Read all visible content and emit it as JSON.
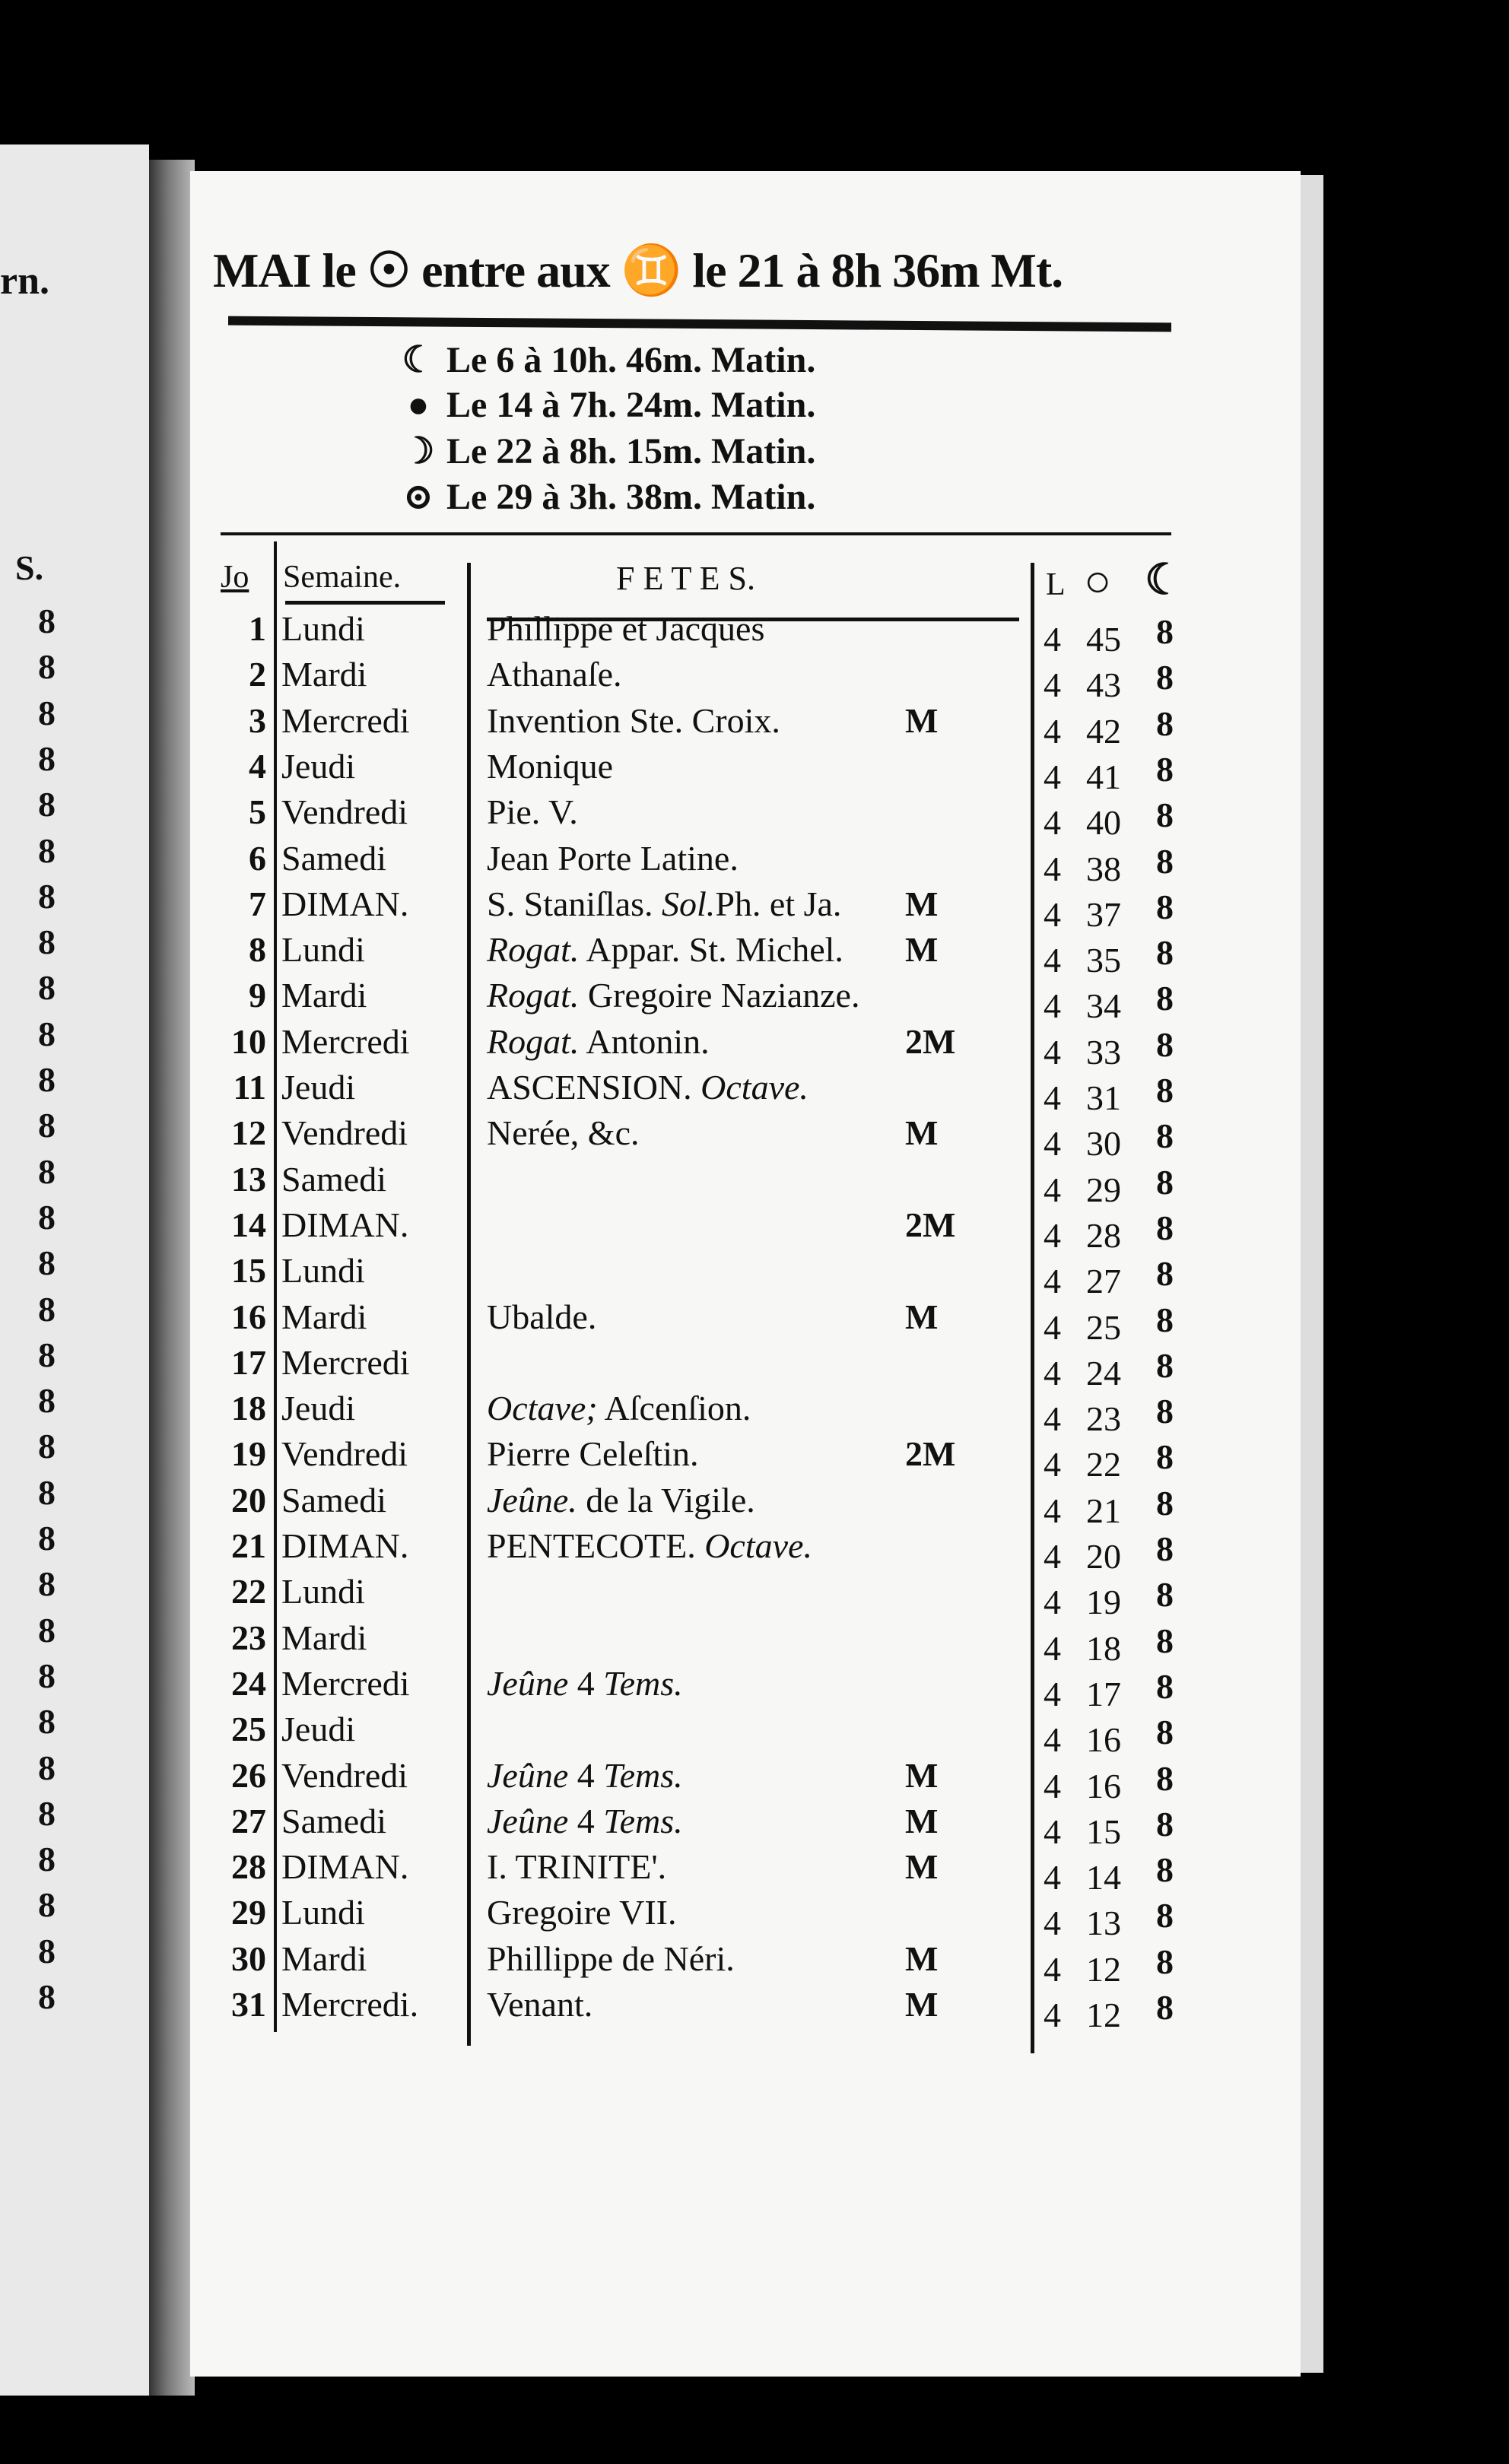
{
  "left_page": {
    "header_fragment": "rn.",
    "column_header": "S.",
    "column_value": "8"
  },
  "title": "MAI le ☉ entre aux ♊ le 21 à 8h 36m Mt.",
  "moon_phases": [
    {
      "icon": "last-quarter-moon-icon",
      "glyph": "☾",
      "text": "Le 6 à 10h. 46m. Matin."
    },
    {
      "icon": "new-moon-icon",
      "glyph": "●",
      "text": "Le 14 à 7h. 24m. Matin."
    },
    {
      "icon": "first-quarter-moon-icon",
      "glyph": "☽",
      "text": "Le 22 à 8h. 15m. Matin."
    },
    {
      "icon": "full-moon-icon",
      "glyph": "⊙",
      "text": "Le 29 à 3h. 38m. Matin."
    }
  ],
  "table": {
    "headers": {
      "day": "Jo",
      "week": "Semaine.",
      "fetes": "F E T E S.",
      "l": "L",
      "sun": "○",
      "moon": "☾"
    },
    "rows": [
      {
        "day": "1",
        "week": "Lundi",
        "fete": [
          {
            "t": "Phillippe et Jacques"
          }
        ],
        "mark": "",
        "h": "4",
        "m": "45",
        "c": "8"
      },
      {
        "day": "2",
        "week": "Mardi",
        "fete": [
          {
            "t": "Athanaſe."
          }
        ],
        "mark": "",
        "h": "4",
        "m": "43",
        "c": "8"
      },
      {
        "day": "3",
        "week": "Mercredi",
        "fete": [
          {
            "t": "Invention Ste. Croix."
          }
        ],
        "mark": "M",
        "h": "4",
        "m": "42",
        "c": "8"
      },
      {
        "day": "4",
        "week": "Jeudi",
        "fete": [
          {
            "t": "Monique"
          }
        ],
        "mark": "",
        "h": "4",
        "m": "41",
        "c": "8"
      },
      {
        "day": "5",
        "week": "Vendredi",
        "fete": [
          {
            "t": "Pie. V."
          }
        ],
        "mark": "",
        "h": "4",
        "m": "40",
        "c": "8"
      },
      {
        "day": "6",
        "week": "Samedi",
        "fete": [
          {
            "t": "Jean Porte Latine."
          }
        ],
        "mark": "",
        "h": "4",
        "m": "38",
        "c": "8"
      },
      {
        "day": "7",
        "week": "DIMAN.",
        "fete": [
          {
            "t": "S. Staniſlas. "
          },
          {
            "t": "Sol.",
            "i": true
          },
          {
            "t": "Ph. et Ja."
          }
        ],
        "mark": "M",
        "h": "4",
        "m": "37",
        "c": "8"
      },
      {
        "day": "8",
        "week": "Lundi",
        "fete": [
          {
            "t": "Rogat.",
            "i": true
          },
          {
            "t": " Appar. St. Michel."
          }
        ],
        "mark": "M",
        "h": "4",
        "m": "35",
        "c": "8"
      },
      {
        "day": "9",
        "week": "Mardi",
        "fete": [
          {
            "t": "Rogat.",
            "i": true
          },
          {
            "t": " Gregoire Nazianze."
          }
        ],
        "mark": "",
        "h": "4",
        "m": "34",
        "c": "8"
      },
      {
        "day": "10",
        "week": "Mercredi",
        "fete": [
          {
            "t": "Rogat.",
            "i": true
          },
          {
            "t": " Antonin."
          }
        ],
        "mark": "2M",
        "h": "4",
        "m": "33",
        "c": "8"
      },
      {
        "day": "11",
        "week": "Jeudi",
        "fete": [
          {
            "t": "ASCENSION. "
          },
          {
            "t": "Octave.",
            "i": true
          }
        ],
        "mark": "",
        "h": "4",
        "m": "31",
        "c": "8"
      },
      {
        "day": "12",
        "week": "Vendredi",
        "fete": [
          {
            "t": "Nerée, &c."
          }
        ],
        "mark": "M",
        "h": "4",
        "m": "30",
        "c": "8"
      },
      {
        "day": "13",
        "week": "Samedi",
        "fete": [],
        "mark": "",
        "h": "4",
        "m": "29",
        "c": "8"
      },
      {
        "day": "14",
        "week": "DIMAN.",
        "fete": [],
        "mark": "2M",
        "h": "4",
        "m": "28",
        "c": "8"
      },
      {
        "day": "15",
        "week": "Lundi",
        "fete": [],
        "mark": "",
        "h": "4",
        "m": "27",
        "c": "8"
      },
      {
        "day": "16",
        "week": "Mardi",
        "fete": [
          {
            "t": "Ubalde."
          }
        ],
        "mark": "M",
        "h": "4",
        "m": "25",
        "c": "8"
      },
      {
        "day": "17",
        "week": "Mercredi",
        "fete": [],
        "mark": "",
        "h": "4",
        "m": "24",
        "c": "8"
      },
      {
        "day": "18",
        "week": "Jeudi",
        "fete": [
          {
            "t": "Octave;",
            "i": true
          },
          {
            "t": " Aſcenſion."
          }
        ],
        "mark": "",
        "h": "4",
        "m": "23",
        "c": "8"
      },
      {
        "day": "19",
        "week": "Vendredi",
        "fete": [
          {
            "t": "Pierre Celeſtin."
          }
        ],
        "mark": "2M",
        "h": "4",
        "m": "22",
        "c": "8"
      },
      {
        "day": "20",
        "week": "Samedi",
        "fete": [
          {
            "t": "Jeûne.",
            "i": true
          },
          {
            "t": " de la Vigile."
          }
        ],
        "mark": "",
        "h": "4",
        "m": "21",
        "c": "8"
      },
      {
        "day": "21",
        "week": "DIMAN.",
        "fete": [
          {
            "t": "PENTECOTE. "
          },
          {
            "t": "Octave.",
            "i": true
          }
        ],
        "mark": "",
        "h": "4",
        "m": "20",
        "c": "8"
      },
      {
        "day": "22",
        "week": "Lundi",
        "fete": [],
        "mark": "",
        "h": "4",
        "m": "19",
        "c": "8"
      },
      {
        "day": "23",
        "week": "Mardi",
        "fete": [],
        "mark": "",
        "h": "4",
        "m": "18",
        "c": "8"
      },
      {
        "day": "24",
        "week": "Mercredi",
        "fete": [
          {
            "t": "Jeûne",
            "i": true
          },
          {
            "t": " 4 "
          },
          {
            "t": "Tems.",
            "i": true
          }
        ],
        "mark": "",
        "h": "4",
        "m": "17",
        "c": "8"
      },
      {
        "day": "25",
        "week": "Jeudi",
        "fete": [],
        "mark": "",
        "h": "4",
        "m": "16",
        "c": "8"
      },
      {
        "day": "26",
        "week": "Vendredi",
        "fete": [
          {
            "t": "Jeûne",
            "i": true
          },
          {
            "t": " 4 "
          },
          {
            "t": "Tems.",
            "i": true
          }
        ],
        "mark": "M",
        "h": "4",
        "m": "16",
        "c": "8"
      },
      {
        "day": "27",
        "week": "Samedi",
        "fete": [
          {
            "t": "Jeûne",
            "i": true
          },
          {
            "t": " 4 "
          },
          {
            "t": "Tems.",
            "i": true
          }
        ],
        "mark": "M",
        "h": "4",
        "m": "15",
        "c": "8"
      },
      {
        "day": "28",
        "week": "DIMAN.",
        "fete": [
          {
            "t": "I. TRINITE'."
          }
        ],
        "mark": "M",
        "h": "4",
        "m": "14",
        "c": "8"
      },
      {
        "day": "29",
        "week": "Lundi",
        "fete": [
          {
            "t": "Gregoire VII."
          }
        ],
        "mark": "",
        "h": "4",
        "m": "13",
        "c": "8"
      },
      {
        "day": "30",
        "week": "Mardi",
        "fete": [
          {
            "t": "Phillippe de Néri."
          }
        ],
        "mark": "M",
        "h": "4",
        "m": "12",
        "c": "8"
      },
      {
        "day": "31",
        "week": "Mercredi.",
        "fete": [
          {
            "t": "Venant."
          }
        ],
        "mark": "M",
        "h": "4",
        "m": "12",
        "c": "8"
      }
    ]
  }
}
